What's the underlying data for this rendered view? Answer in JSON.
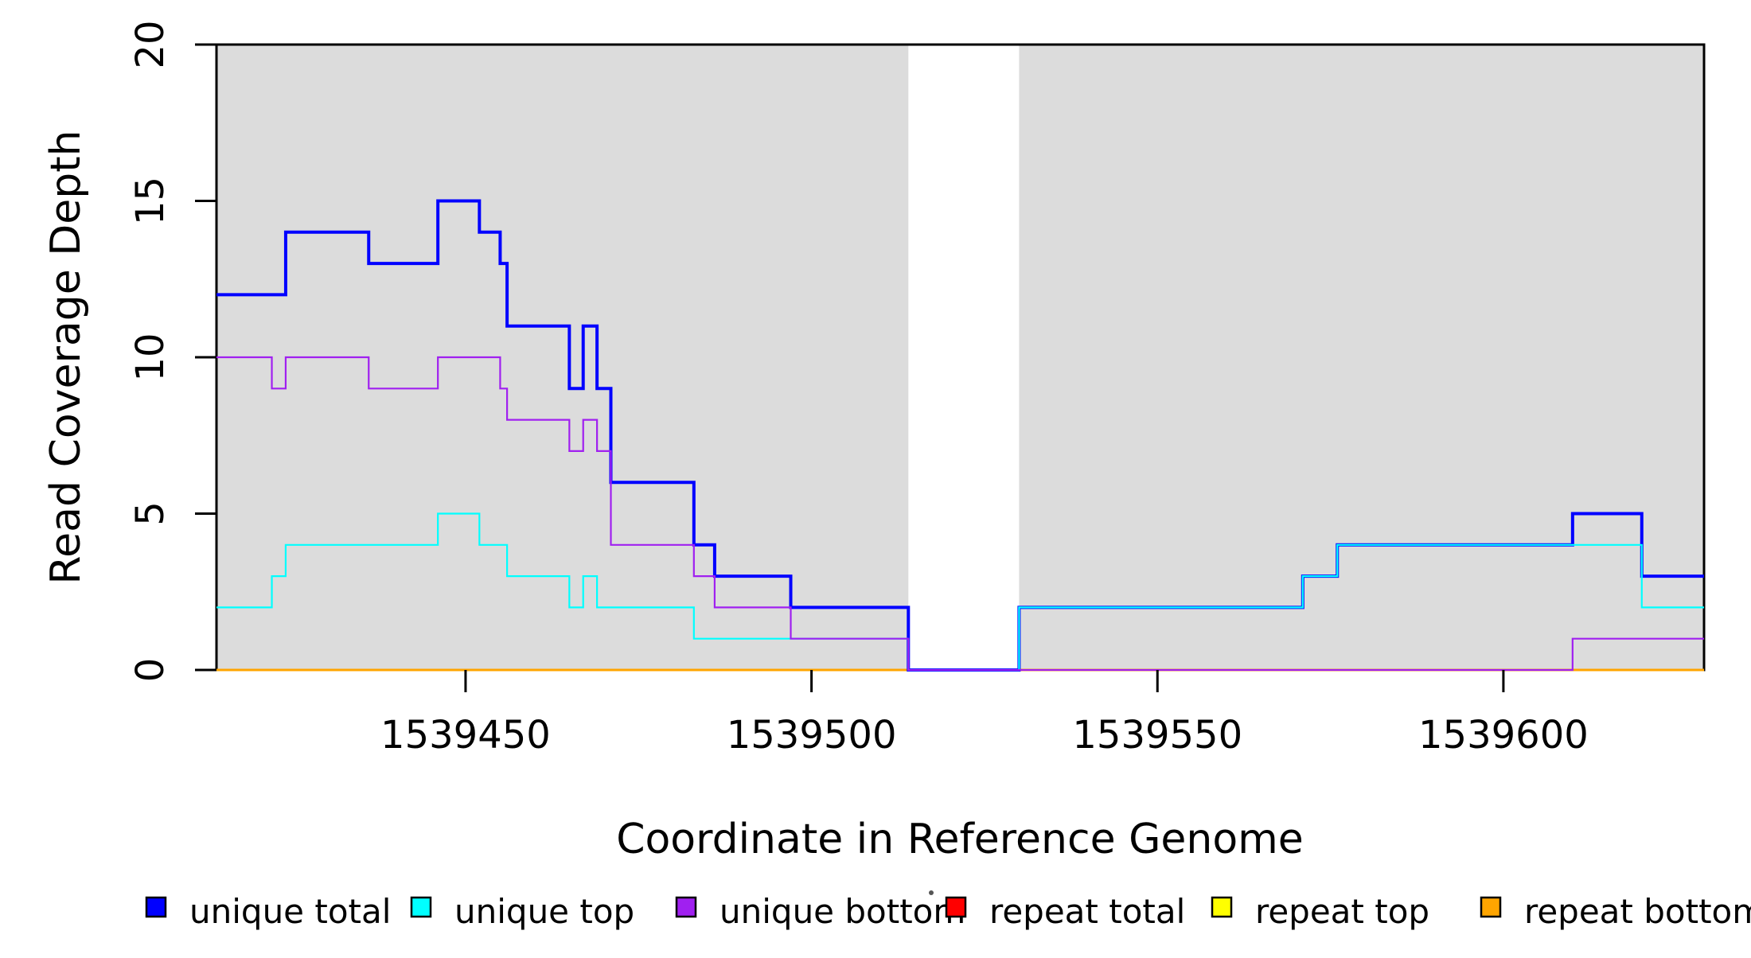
{
  "figure": {
    "x_axis_title": "Coordinate in Reference Genome",
    "y_axis_title": "Read Coverage Depth"
  },
  "chart_data": {
    "type": "step-line",
    "title": "",
    "xlabel": "Coordinate in Reference Genome",
    "ylabel": "Read Coverage Depth",
    "xlim": [
      1539414,
      1539629
    ],
    "ylim": [
      0,
      20
    ],
    "x_ticks": [
      1539450,
      1539500,
      1539550,
      1539600
    ],
    "y_ticks": [
      0,
      5,
      10,
      15,
      20
    ],
    "grid": false,
    "plot_background": "#ffffff",
    "shaded_regions": [
      {
        "x0": 1539414,
        "x1": 1539514,
        "color": "#DCDCDC"
      },
      {
        "x0": 1539530,
        "x1": 1539629,
        "color": "#DCDCDC"
      }
    ],
    "gap_region": {
      "x0": 1539514,
      "x1": 1539530
    },
    "draw_order": [
      3,
      4,
      5,
      0,
      1,
      2
    ],
    "series": [
      {
        "name": "unique total",
        "color": "#0000FF",
        "line_width": 4,
        "segments": [
          [
            1539414,
            1539424,
            12
          ],
          [
            1539424,
            1539436,
            14
          ],
          [
            1539436,
            1539446,
            13
          ],
          [
            1539446,
            1539452,
            15
          ],
          [
            1539452,
            1539455,
            14
          ],
          [
            1539455,
            1539456,
            13
          ],
          [
            1539456,
            1539465,
            11
          ],
          [
            1539465,
            1539467,
            9
          ],
          [
            1539467,
            1539469,
            11
          ],
          [
            1539469,
            1539471,
            9
          ],
          [
            1539471,
            1539483,
            6
          ],
          [
            1539483,
            1539486,
            4
          ],
          [
            1539486,
            1539497,
            3
          ],
          [
            1539497,
            1539514,
            2
          ],
          [
            1539514,
            1539530,
            0
          ],
          [
            1539530,
            1539571,
            2
          ],
          [
            1539571,
            1539576,
            3
          ],
          [
            1539576,
            1539610,
            4
          ],
          [
            1539610,
            1539620,
            5
          ],
          [
            1539620,
            1539629,
            3
          ]
        ]
      },
      {
        "name": "unique top",
        "color": "#00FFFF",
        "line_width": 2.2,
        "segments": [
          [
            1539414,
            1539422,
            2
          ],
          [
            1539422,
            1539424,
            3
          ],
          [
            1539424,
            1539446,
            4
          ],
          [
            1539446,
            1539452,
            5
          ],
          [
            1539452,
            1539456,
            4
          ],
          [
            1539456,
            1539465,
            3
          ],
          [
            1539465,
            1539467,
            2
          ],
          [
            1539467,
            1539469,
            3
          ],
          [
            1539469,
            1539483,
            2
          ],
          [
            1539483,
            1539514,
            1
          ],
          [
            1539514,
            1539530,
            0
          ],
          [
            1539530,
            1539571,
            2
          ],
          [
            1539571,
            1539576,
            3
          ],
          [
            1539576,
            1539620,
            4
          ],
          [
            1539620,
            1539629,
            2
          ]
        ]
      },
      {
        "name": "unique bottom",
        "color": "#A020F0",
        "line_width": 2.2,
        "segments": [
          [
            1539414,
            1539422,
            10
          ],
          [
            1539422,
            1539424,
            9
          ],
          [
            1539424,
            1539436,
            10
          ],
          [
            1539436,
            1539446,
            9
          ],
          [
            1539446,
            1539455,
            10
          ],
          [
            1539455,
            1539456,
            9
          ],
          [
            1539456,
            1539465,
            8
          ],
          [
            1539465,
            1539467,
            7
          ],
          [
            1539467,
            1539469,
            8
          ],
          [
            1539469,
            1539471,
            7
          ],
          [
            1539471,
            1539483,
            4
          ],
          [
            1539483,
            1539486,
            3
          ],
          [
            1539486,
            1539497,
            2
          ],
          [
            1539497,
            1539514,
            1
          ],
          [
            1539514,
            1539610,
            0
          ],
          [
            1539610,
            1539629,
            1
          ]
        ]
      },
      {
        "name": "repeat total",
        "color": "#FF0000",
        "line_width": 2.2,
        "segments": [
          [
            1539414,
            1539629,
            0
          ]
        ]
      },
      {
        "name": "repeat top",
        "color": "#FFFF00",
        "line_width": 2.2,
        "segments": [
          [
            1539414,
            1539629,
            0
          ]
        ]
      },
      {
        "name": "repeat bottom",
        "color": "#FFA500",
        "line_width": 3,
        "segments": [
          [
            1539414,
            1539629,
            0
          ]
        ]
      }
    ],
    "legend": {
      "position": "bottom",
      "items": [
        {
          "label": "unique total",
          "color": "#0000FF"
        },
        {
          "label": "unique top",
          "color": "#00FFFF"
        },
        {
          "label": "unique bottom",
          "color": "#A020F0"
        },
        {
          "label": "repeat total",
          "color": "#FF0000"
        },
        {
          "label": "repeat top",
          "color": "#FFFF00"
        },
        {
          "label": "repeat bottom",
          "color": "#FFA500"
        }
      ]
    }
  }
}
